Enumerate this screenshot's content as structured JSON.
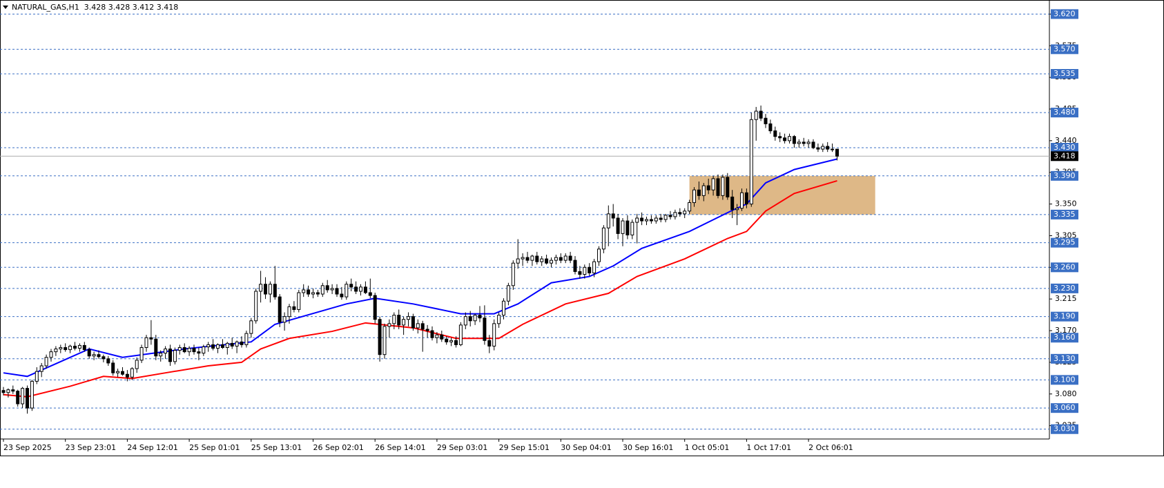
{
  "chart_data": {
    "type": "candlestick",
    "title": "NATURAL_GAS,H1  3.428 3.428 3.412 3.418",
    "categories": [
      "23 Sep 2025",
      null,
      null,
      null,
      null,
      null,
      null,
      null,
      null,
      null,
      null,
      null,
      null,
      "23 Sep 23:01",
      null,
      null,
      null,
      null,
      null,
      null,
      null,
      null,
      null,
      null,
      null,
      null,
      "24 Sep 12:01",
      null,
      null,
      null,
      null,
      null,
      null,
      null,
      null,
      null,
      null,
      null,
      null,
      "25 Sep 01:01",
      null,
      null,
      null,
      null,
      null,
      null,
      null,
      null,
      null,
      null,
      null,
      null,
      "25 Sep 13:01",
      null,
      null,
      null,
      null,
      null,
      null,
      null,
      null,
      null,
      null,
      null,
      null,
      "26 Sep 02:01",
      null,
      null,
      null,
      null,
      null,
      null,
      null,
      null,
      null,
      null,
      null,
      null,
      "26 Sep 14:01",
      null,
      null,
      null,
      null,
      null,
      null,
      null,
      null,
      null,
      null,
      null,
      null,
      "29 Sep 03:01",
      null,
      null,
      null,
      null,
      null,
      null,
      null,
      null,
      null,
      null,
      null,
      null,
      "29 Sep 15:01",
      null,
      null,
      null,
      null,
      null,
      null,
      null,
      null,
      null,
      null,
      null,
      null,
      "30 Sep 04:01",
      null,
      null,
      null,
      null,
      null,
      null,
      null,
      null,
      null,
      null,
      null,
      null,
      "30 Sep 16:01",
      null,
      null,
      null,
      null,
      null,
      null,
      null,
      null,
      null,
      null,
      null,
      null,
      "1 Oct 05:01",
      null,
      null,
      null,
      null,
      null,
      null,
      null,
      null,
      null,
      null,
      null,
      null,
      "1 Oct 17:01",
      null,
      null,
      null,
      null,
      null,
      null,
      null,
      null,
      null,
      null,
      null,
      null,
      "2 Oct 06:01",
      null,
      null,
      null,
      null,
      null,
      null
    ],
    "ohlc": [
      [
        3.085,
        3.09,
        3.078,
        3.082
      ],
      [
        3.082,
        3.088,
        3.075,
        3.086
      ],
      [
        3.086,
        3.092,
        3.08,
        3.084
      ],
      [
        3.084,
        3.086,
        3.062,
        3.066
      ],
      [
        3.066,
        3.09,
        3.06,
        3.088
      ],
      [
        3.088,
        3.092,
        3.052,
        3.06
      ],
      [
        3.06,
        3.1,
        3.056,
        3.098
      ],
      [
        3.098,
        3.118,
        3.094,
        3.112
      ],
      [
        3.112,
        3.124,
        3.104,
        3.12
      ],
      [
        3.12,
        3.136,
        3.116,
        3.132
      ],
      [
        3.132,
        3.144,
        3.126,
        3.14
      ],
      [
        3.14,
        3.148,
        3.134,
        3.144
      ],
      [
        3.144,
        3.15,
        3.138,
        3.146
      ],
      [
        3.146,
        3.152,
        3.14,
        3.143
      ],
      [
        3.143,
        3.15,
        3.138,
        3.148
      ],
      [
        3.148,
        3.154,
        3.142,
        3.145
      ],
      [
        3.145,
        3.152,
        3.14,
        3.149
      ],
      [
        3.149,
        3.154,
        3.14,
        3.143
      ],
      [
        3.143,
        3.146,
        3.13,
        3.134
      ],
      [
        3.134,
        3.14,
        3.128,
        3.136
      ],
      [
        3.136,
        3.142,
        3.13,
        3.133
      ],
      [
        3.133,
        3.136,
        3.125,
        3.13
      ],
      [
        3.13,
        3.134,
        3.12,
        3.124
      ],
      [
        3.124,
        3.128,
        3.106,
        3.11
      ],
      [
        3.11,
        3.116,
        3.104,
        3.112
      ],
      [
        3.112,
        3.118,
        3.106,
        3.108
      ],
      [
        3.108,
        3.114,
        3.098,
        3.104
      ],
      [
        3.104,
        3.118,
        3.1,
        3.116
      ],
      [
        3.116,
        3.132,
        3.11,
        3.128
      ],
      [
        3.128,
        3.15,
        3.124,
        3.146
      ],
      [
        3.146,
        3.164,
        3.14,
        3.16
      ],
      [
        3.16,
        3.185,
        3.15,
        3.158
      ],
      [
        3.158,
        3.164,
        3.128,
        3.134
      ],
      [
        3.134,
        3.142,
        3.126,
        3.138
      ],
      [
        3.138,
        3.148,
        3.13,
        3.144
      ],
      [
        3.144,
        3.15,
        3.12,
        3.126
      ],
      [
        3.126,
        3.146,
        3.122,
        3.142
      ],
      [
        3.142,
        3.15,
        3.136,
        3.146
      ],
      [
        3.146,
        3.152,
        3.138,
        3.14
      ],
      [
        3.14,
        3.148,
        3.134,
        3.145
      ],
      [
        3.145,
        3.15,
        3.136,
        3.14
      ],
      [
        3.14,
        3.146,
        3.128,
        3.138
      ],
      [
        3.138,
        3.15,
        3.134,
        3.147
      ],
      [
        3.147,
        3.154,
        3.14,
        3.15
      ],
      [
        3.15,
        3.158,
        3.142,
        3.145
      ],
      [
        3.145,
        3.152,
        3.138,
        3.15
      ],
      [
        3.15,
        3.158,
        3.144,
        3.146
      ],
      [
        3.146,
        3.154,
        3.136,
        3.152
      ],
      [
        3.152,
        3.16,
        3.144,
        3.148
      ],
      [
        3.148,
        3.156,
        3.138,
        3.154
      ],
      [
        3.154,
        3.162,
        3.146,
        3.15
      ],
      [
        3.15,
        3.17,
        3.146,
        3.166
      ],
      [
        3.166,
        3.188,
        3.16,
        3.184
      ],
      [
        3.184,
        3.23,
        3.18,
        3.226
      ],
      [
        3.226,
        3.255,
        3.21,
        3.236
      ],
      [
        3.236,
        3.246,
        3.215,
        3.222
      ],
      [
        3.222,
        3.24,
        3.21,
        3.236
      ],
      [
        3.236,
        3.262,
        3.214,
        3.218
      ],
      [
        3.218,
        3.222,
        3.175,
        3.182
      ],
      [
        3.182,
        3.196,
        3.17,
        3.19
      ],
      [
        3.19,
        3.208,
        3.18,
        3.204
      ],
      [
        3.204,
        3.212,
        3.196,
        3.2
      ],
      [
        3.2,
        3.228,
        3.196,
        3.224
      ],
      [
        3.224,
        3.236,
        3.218,
        3.228
      ],
      [
        3.228,
        3.234,
        3.218,
        3.222
      ],
      [
        3.222,
        3.23,
        3.216,
        3.224
      ],
      [
        3.224,
        3.228,
        3.218,
        3.222
      ],
      [
        3.222,
        3.238,
        3.218,
        3.234
      ],
      [
        3.234,
        3.242,
        3.224,
        3.228
      ],
      [
        3.228,
        3.236,
        3.222,
        3.23
      ],
      [
        3.23,
        3.236,
        3.218,
        3.222
      ],
      [
        3.222,
        3.232,
        3.214,
        3.218
      ],
      [
        3.218,
        3.24,
        3.214,
        3.236
      ],
      [
        3.236,
        3.244,
        3.226,
        3.232
      ],
      [
        3.232,
        3.24,
        3.222,
        3.226
      ],
      [
        3.226,
        3.236,
        3.22,
        3.232
      ],
      [
        3.232,
        3.24,
        3.222,
        3.224
      ],
      [
        3.224,
        3.244,
        3.216,
        3.22
      ],
      [
        3.22,
        3.224,
        3.18,
        3.186
      ],
      [
        3.186,
        3.19,
        3.126,
        3.136
      ],
      [
        3.136,
        3.18,
        3.13,
        3.176
      ],
      [
        3.176,
        3.186,
        3.16,
        3.18
      ],
      [
        3.18,
        3.196,
        3.172,
        3.192
      ],
      [
        3.192,
        3.2,
        3.172,
        3.178
      ],
      [
        3.178,
        3.19,
        3.164,
        3.186
      ],
      [
        3.186,
        3.196,
        3.176,
        3.19
      ],
      [
        3.19,
        3.194,
        3.17,
        3.174
      ],
      [
        3.174,
        3.186,
        3.166,
        3.18
      ],
      [
        3.18,
        3.184,
        3.14,
        3.172
      ],
      [
        3.172,
        3.178,
        3.16,
        3.17
      ],
      [
        3.17,
        3.176,
        3.156,
        3.16
      ],
      [
        3.16,
        3.168,
        3.152,
        3.164
      ],
      [
        3.164,
        3.17,
        3.154,
        3.158
      ],
      [
        3.158,
        3.162,
        3.15,
        3.154
      ],
      [
        3.154,
        3.16,
        3.148,
        3.156
      ],
      [
        3.156,
        3.162,
        3.146,
        3.15
      ],
      [
        3.15,
        3.182,
        3.148,
        3.178
      ],
      [
        3.178,
        3.196,
        3.172,
        3.19
      ],
      [
        3.19,
        3.198,
        3.176,
        3.184
      ],
      [
        3.184,
        3.194,
        3.178,
        3.192
      ],
      [
        3.192,
        3.205,
        3.182,
        3.188
      ],
      [
        3.188,
        3.206,
        3.15,
        3.156
      ],
      [
        3.156,
        3.164,
        3.138,
        3.148
      ],
      [
        3.148,
        3.186,
        3.142,
        3.18
      ],
      [
        3.18,
        3.196,
        3.174,
        3.192
      ],
      [
        3.192,
        3.216,
        3.186,
        3.212
      ],
      [
        3.212,
        3.238,
        3.206,
        3.234
      ],
      [
        3.234,
        3.27,
        3.228,
        3.266
      ],
      [
        3.266,
        3.3,
        3.258,
        3.272
      ],
      [
        3.272,
        3.28,
        3.262,
        3.274
      ],
      [
        3.274,
        3.282,
        3.266,
        3.27
      ],
      [
        3.27,
        3.278,
        3.262,
        3.276
      ],
      [
        3.276,
        3.282,
        3.264,
        3.268
      ],
      [
        3.268,
        3.276,
        3.262,
        3.272
      ],
      [
        3.272,
        3.278,
        3.264,
        3.266
      ],
      [
        3.266,
        3.274,
        3.26,
        3.27
      ],
      [
        3.27,
        3.278,
        3.264,
        3.274
      ],
      [
        3.274,
        3.28,
        3.266,
        3.27
      ],
      [
        3.27,
        3.28,
        3.266,
        3.276
      ],
      [
        3.276,
        3.282,
        3.266,
        3.27
      ],
      [
        3.27,
        3.276,
        3.25,
        3.254
      ],
      [
        3.254,
        3.262,
        3.244,
        3.25
      ],
      [
        3.25,
        3.264,
        3.244,
        3.26
      ],
      [
        3.26,
        3.266,
        3.248,
        3.252
      ],
      [
        3.252,
        3.272,
        3.246,
        3.268
      ],
      [
        3.268,
        3.29,
        3.262,
        3.286
      ],
      [
        3.286,
        3.32,
        3.28,
        3.316
      ],
      [
        3.316,
        3.348,
        3.29,
        3.336
      ],
      [
        3.336,
        3.35,
        3.318,
        3.33
      ],
      [
        3.33,
        3.336,
        3.3,
        3.308
      ],
      [
        3.308,
        3.33,
        3.29,
        3.326
      ],
      [
        3.326,
        3.334,
        3.3,
        3.306
      ],
      [
        3.306,
        3.328,
        3.3,
        3.324
      ],
      [
        3.324,
        3.336,
        3.294,
        3.33
      ],
      [
        3.33,
        3.338,
        3.32,
        3.326
      ],
      [
        3.326,
        3.332,
        3.32,
        3.328
      ],
      [
        3.328,
        3.334,
        3.322,
        3.326
      ],
      [
        3.326,
        3.334,
        3.322,
        3.33
      ],
      [
        3.33,
        3.336,
        3.324,
        3.328
      ],
      [
        3.328,
        3.336,
        3.324,
        3.334
      ],
      [
        3.334,
        3.34,
        3.328,
        3.332
      ],
      [
        3.332,
        3.342,
        3.328,
        3.338
      ],
      [
        3.338,
        3.344,
        3.332,
        3.336
      ],
      [
        3.336,
        3.344,
        3.33,
        3.34
      ],
      [
        3.34,
        3.356,
        3.336,
        3.352
      ],
      [
        3.352,
        3.374,
        3.346,
        3.37
      ],
      [
        3.37,
        3.382,
        3.356,
        3.362
      ],
      [
        3.362,
        3.38,
        3.354,
        3.376
      ],
      [
        3.376,
        3.386,
        3.364,
        3.37
      ],
      [
        3.37,
        3.39,
        3.362,
        3.386
      ],
      [
        3.386,
        3.392,
        3.358,
        3.362
      ],
      [
        3.362,
        3.392,
        3.356,
        3.388
      ],
      [
        3.388,
        3.394,
        3.356,
        3.36
      ],
      [
        3.36,
        3.37,
        3.33,
        3.342
      ],
      [
        3.342,
        3.35,
        3.32,
        3.344
      ],
      [
        3.344,
        3.372,
        3.34,
        3.366
      ],
      [
        3.366,
        3.372,
        3.344,
        3.35
      ],
      [
        3.35,
        3.48,
        3.346,
        3.47
      ],
      [
        3.47,
        3.488,
        3.44,
        3.482
      ],
      [
        3.482,
        3.49,
        3.468,
        3.472
      ],
      [
        3.472,
        3.478,
        3.458,
        3.464
      ],
      [
        3.464,
        3.47,
        3.45,
        3.454
      ],
      [
        3.454,
        3.46,
        3.44,
        3.446
      ],
      [
        3.446,
        3.452,
        3.438,
        3.444
      ],
      [
        3.444,
        3.45,
        3.436,
        3.44
      ],
      [
        3.44,
        3.45,
        3.436,
        3.446
      ],
      [
        3.446,
        3.448,
        3.43,
        3.436
      ],
      [
        3.436,
        3.442,
        3.43,
        3.438
      ],
      [
        3.438,
        3.444,
        3.432,
        3.436
      ],
      [
        3.436,
        3.442,
        3.43,
        3.438
      ],
      [
        3.438,
        3.442,
        3.428,
        3.43
      ],
      [
        3.43,
        3.436,
        3.424,
        3.428
      ],
      [
        3.428,
        3.436,
        3.424,
        3.432
      ],
      [
        3.432,
        3.438,
        3.424,
        3.428
      ],
      [
        3.428,
        3.436,
        3.424,
        3.428
      ],
      [
        3.428,
        3.428,
        3.412,
        3.418
      ]
    ],
    "up_color": "#ffffff",
    "down_color": "#000000",
    "lines": [
      {
        "color": "#0000ff",
        "x": [
          0,
          5,
          18,
          25,
          38,
          52,
          57,
          72,
          78,
          86,
          96,
          103,
          108,
          115,
          123,
          128,
          134,
          144,
          153,
          156,
          160,
          166,
          175
        ],
        "values": [
          3.11,
          3.105,
          3.144,
          3.132,
          3.144,
          3.154,
          3.179,
          3.208,
          3.216,
          3.208,
          3.194,
          3.194,
          3.208,
          3.238,
          3.247,
          3.262,
          3.287,
          3.311,
          3.341,
          3.35,
          3.38,
          3.399,
          3.414
        ]
      },
      {
        "color": "#ff0000",
        "x": [
          0,
          5,
          14,
          21,
          27,
          34,
          43,
          50,
          54,
          60,
          69,
          76,
          86,
          95,
          104,
          109,
          118,
          127,
          133,
          143,
          152,
          156,
          160,
          166,
          175
        ],
        "values": [
          3.079,
          3.076,
          3.091,
          3.105,
          3.102,
          3.11,
          3.12,
          3.125,
          3.144,
          3.159,
          3.169,
          3.181,
          3.174,
          3.159,
          3.159,
          3.179,
          3.208,
          3.223,
          3.247,
          3.272,
          3.301,
          3.311,
          3.34,
          3.365,
          3.383
        ]
      }
    ],
    "zone": {
      "from": 144,
      "to": 183,
      "high": 3.39,
      "low": 3.335,
      "color": "#deb887"
    },
    "levels": [
      {
        "value": 3.62,
        "label": "3.620"
      },
      {
        "value": 3.57,
        "label": "3.570"
      },
      3.535,
      {
        "value": 3.48,
        "label": "3.480"
      },
      {
        "value": 3.43,
        "label": "3.430"
      },
      {
        "value": 3.39,
        "label": "3.390"
      },
      3.335,
      3.295,
      {
        "value": 3.26,
        "label": "3.260"
      },
      {
        "value": 3.23,
        "label": "3.230"
      },
      {
        "value": 3.19,
        "label": "3.190"
      },
      {
        "value": 3.16,
        "label": "3.160"
      },
      {
        "value": 3.13,
        "label": "3.130"
      },
      {
        "value": 3.1,
        "label": "3.100"
      },
      {
        "value": 3.06,
        "label": "3.060"
      },
      {
        "value": 3.03,
        "label": "3.030"
      }
    ],
    "level_color": "#3a6fc4",
    "last": 3.418,
    "ylim": [
      3.016,
      3.64
    ],
    "yticks": [
      3.035,
      {
        "value": 3.08,
        "label": "3.080"
      },
      3.125,
      {
        "value": 3.17,
        "label": "3.170"
      },
      3.215,
      {
        "value": 3.26,
        "label": "3.260"
      },
      3.305,
      {
        "value": 3.35,
        "label": "3.350"
      },
      3.395,
      {
        "value": 3.44,
        "label": "3.440"
      },
      3.485,
      {
        "value": 3.53,
        "label": "3.530"
      },
      3.575,
      {
        "value": 3.62,
        "label": "3.620"
      }
    ],
    "grid": false
  }
}
